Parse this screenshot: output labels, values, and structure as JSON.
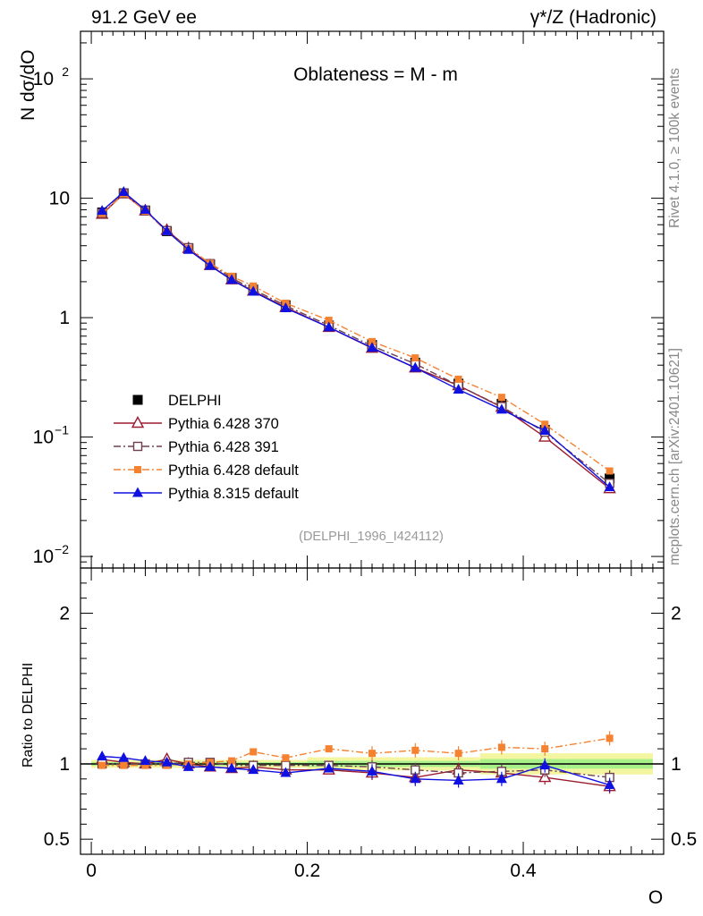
{
  "header": {
    "left": "91.2 GeV ee",
    "right": "γ*/Z (Hadronic)"
  },
  "sidebar": {
    "rivet": "Rivet 4.1.0, ≥ 100k events",
    "mcplots": "mcplots.cern.ch [arXiv:2401.10621]"
  },
  "chart_data": {
    "type": "line",
    "title": "Oblateness = M - m",
    "analysis_tag": "(DELPHI_1996_I424112)",
    "xlabel": "O",
    "ylabel": "N  dσ/dO",
    "ratio_ylabel": "Ratio to DELPHI",
    "xlim": [
      -0.01,
      0.53
    ],
    "ylim_main": [
      0.008,
      250
    ],
    "ylim_ratio": [
      0.4,
      2.3
    ],
    "x_ticks": [
      "0",
      "0.2",
      "0.4"
    ],
    "x_tick_values": [
      0,
      0.2,
      0.4
    ],
    "y_ticks_main": [
      "10^-2",
      "10^-1",
      "1",
      "10",
      "10^2"
    ],
    "y_ticks_ratio": [
      "0.5",
      "1",
      "2"
    ],
    "x": [
      0.01,
      0.03,
      0.05,
      0.07,
      0.09,
      0.11,
      0.13,
      0.15,
      0.18,
      0.22,
      0.26,
      0.3,
      0.34,
      0.38,
      0.42,
      0.48
    ],
    "bin_edges": [
      0.0,
      0.02,
      0.04,
      0.06,
      0.08,
      0.1,
      0.12,
      0.14,
      0.16,
      0.2,
      0.24,
      0.28,
      0.32,
      0.36,
      0.4,
      0.44,
      0.52
    ],
    "series": [
      {
        "name": "DELPHI",
        "color": "#000000",
        "marker": "square-filled",
        "dash": "",
        "values": [
          7.6,
          11.0,
          7.9,
          5.3,
          3.8,
          2.8,
          2.15,
          1.72,
          1.27,
          0.86,
          0.59,
          0.42,
          0.28,
          0.19,
          0.115,
          0.045
        ],
        "ratio": [
          1.0,
          1.0,
          1.0,
          1.0,
          1.0,
          1.0,
          1.0,
          1.0,
          1.0,
          1.0,
          1.0,
          1.0,
          1.0,
          1.0,
          1.0,
          1.0
        ]
      },
      {
        "name": "Pythia 6.428 370",
        "color": "#9b1b30",
        "marker": "triangle-open",
        "dash": "",
        "values": [
          7.35,
          10.9,
          7.85,
          5.4,
          3.8,
          2.74,
          2.08,
          1.67,
          1.22,
          0.83,
          0.555,
          0.38,
          0.27,
          0.178,
          0.1,
          0.037
        ],
        "ratio": [
          1.03,
          1.01,
          1.0,
          1.03,
          1.0,
          0.98,
          0.97,
          0.98,
          0.96,
          0.96,
          0.94,
          0.91,
          0.96,
          0.94,
          0.91,
          0.85
        ]
      },
      {
        "name": "Pythia 6.428 391",
        "color": "#6e4050",
        "marker": "square-open",
        "dash": "8,3,2,3",
        "values": [
          7.5,
          11.0,
          7.9,
          5.35,
          3.85,
          2.83,
          2.15,
          1.72,
          1.26,
          0.86,
          0.58,
          0.41,
          0.27,
          0.18,
          0.11,
          0.041
        ],
        "ratio": [
          1.0,
          1.0,
          1.0,
          1.0,
          1.01,
          1.01,
          0.99,
          0.99,
          0.99,
          0.99,
          0.98,
          0.96,
          0.94,
          0.95,
          0.96,
          0.91
        ]
      },
      {
        "name": "Pythia 6.428 default",
        "color": "#f58231",
        "marker": "square-filled-small",
        "dash": "8,3,2,3",
        "values": [
          7.45,
          10.9,
          7.8,
          5.25,
          3.8,
          2.85,
          2.22,
          1.84,
          1.32,
          0.95,
          0.63,
          0.46,
          0.305,
          0.215,
          0.128,
          0.052
        ],
        "ratio": [
          0.99,
          0.99,
          0.99,
          0.99,
          1.0,
          1.01,
          1.02,
          1.08,
          1.04,
          1.1,
          1.07,
          1.09,
          1.07,
          1.11,
          1.1,
          1.17
        ]
      },
      {
        "name": "Pythia 8.315 default",
        "color": "#1010e0",
        "marker": "triangle-filled",
        "dash": "",
        "values": [
          7.85,
          11.3,
          8.0,
          5.3,
          3.7,
          2.72,
          2.07,
          1.65,
          1.2,
          0.83,
          0.56,
          0.38,
          0.25,
          0.17,
          0.113,
          0.038
        ],
        "ratio": [
          1.05,
          1.04,
          1.02,
          1.01,
          0.98,
          0.98,
          0.97,
          0.96,
          0.94,
          0.97,
          0.95,
          0.9,
          0.89,
          0.9,
          0.99,
          0.86
        ]
      }
    ]
  }
}
